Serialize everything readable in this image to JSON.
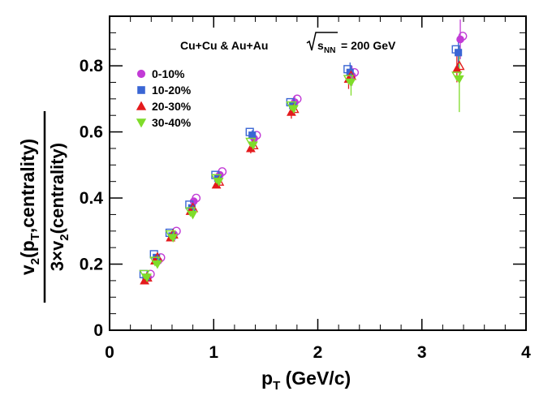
{
  "chart_data": {
    "type": "scatter",
    "title": "",
    "annotation": {
      "systems": "Cu+Cu & Au+Au",
      "energy_symbol": "s",
      "energy_subscript": "NN",
      "energy_value": "= 200 GeV"
    },
    "xlabel": {
      "main": "p",
      "sub": "T",
      "rest": " (GeV/c)"
    },
    "ylabel": {
      "numerator": {
        "v": "v",
        "v_sub": "2",
        "open": "(p",
        "p_sub": "T",
        "rest": ",centrality)"
      },
      "denominator": {
        "prefix": "3×v",
        "v_sub": "2",
        "rest": "(centrality)"
      }
    },
    "xlim": [
      0,
      4
    ],
    "ylim": [
      0,
      0.95
    ],
    "x_ticks": [
      0,
      1,
      2,
      3,
      4
    ],
    "x_tick_labels": [
      "0",
      "1",
      "2",
      "3",
      "4"
    ],
    "y_ticks": [
      0,
      0.2,
      0.4,
      0.6,
      0.8
    ],
    "y_tick_labels": [
      "0",
      "0.2",
      "0.4",
      "0.6",
      "0.8"
    ],
    "legend_position": "top-left",
    "series": [
      {
        "name": "0-10%",
        "marker": "circle",
        "color": "#c23bd6",
        "x": [
          0.35,
          0.45,
          0.6,
          0.79,
          1.04,
          1.37,
          1.76,
          2.31,
          3.35
        ],
        "y": [
          0.16,
          0.21,
          0.29,
          0.39,
          0.47,
          0.58,
          0.69,
          0.77,
          0.88
        ],
        "err": [
          0.01,
          0.01,
          0.01,
          0.01,
          0.01,
          0.015,
          0.02,
          0.03,
          0.06
        ]
      },
      {
        "name": "10-20%",
        "marker": "square",
        "color": "#3a66d4",
        "x": [
          0.35,
          0.45,
          0.6,
          0.79,
          1.04,
          1.37,
          1.76,
          2.31,
          3.35
        ],
        "y": [
          0.16,
          0.22,
          0.285,
          0.37,
          0.46,
          0.59,
          0.68,
          0.78,
          0.84
        ],
        "err": [
          0.01,
          0.01,
          0.01,
          0.01,
          0.01,
          0.015,
          0.02,
          0.03,
          0.05
        ]
      },
      {
        "name": "20-30%",
        "marker": "triangle-up",
        "color": "#e41a1c",
        "x": [
          0.35,
          0.45,
          0.6,
          0.79,
          1.04,
          1.37,
          1.76,
          2.31,
          3.35
        ],
        "y": [
          0.15,
          0.21,
          0.28,
          0.36,
          0.44,
          0.55,
          0.66,
          0.76,
          0.79
        ],
        "err": [
          0.01,
          0.01,
          0.01,
          0.01,
          0.01,
          0.015,
          0.02,
          0.03,
          0.04
        ]
      },
      {
        "name": "30-40%",
        "marker": "triangle-down",
        "color": "#7fdc2a",
        "x": [
          0.35,
          0.45,
          0.6,
          0.79,
          1.04,
          1.37,
          1.76,
          2.31,
          3.35
        ],
        "y": [
          0.16,
          0.2,
          0.28,
          0.35,
          0.45,
          0.56,
          0.67,
          0.75,
          0.76
        ],
        "err": [
          0.01,
          0.01,
          0.01,
          0.01,
          0.01,
          0.015,
          0.02,
          0.04,
          0.1
        ]
      }
    ]
  }
}
